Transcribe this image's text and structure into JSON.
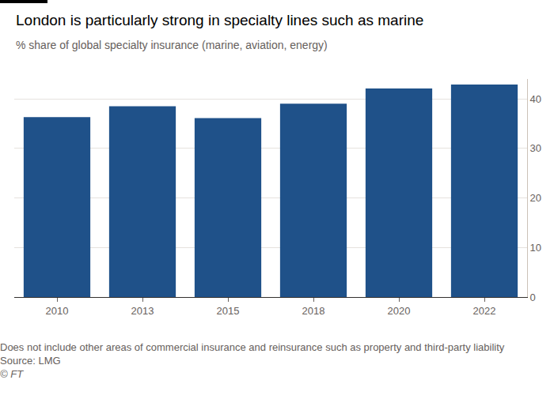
{
  "chart_data": {
    "type": "bar",
    "title": "London is particularly strong in specialty lines such as marine",
    "subtitle": "% share of global specialty insurance (marine, aviation, energy)",
    "categories": [
      "2010",
      "2013",
      "2015",
      "2018",
      "2020",
      "2022"
    ],
    "values": [
      36.3,
      38.5,
      36.1,
      39.0,
      42.1,
      42.9
    ],
    "color": "#1f5189",
    "ylim": [
      0,
      44
    ],
    "yticks": [
      0,
      10,
      20,
      30,
      40
    ],
    "grid": true,
    "note": "Does not include other areas of commercial insurance and reinsurance such as property and third-party liability",
    "source": "Source: LMG",
    "credit": "© FT"
  }
}
